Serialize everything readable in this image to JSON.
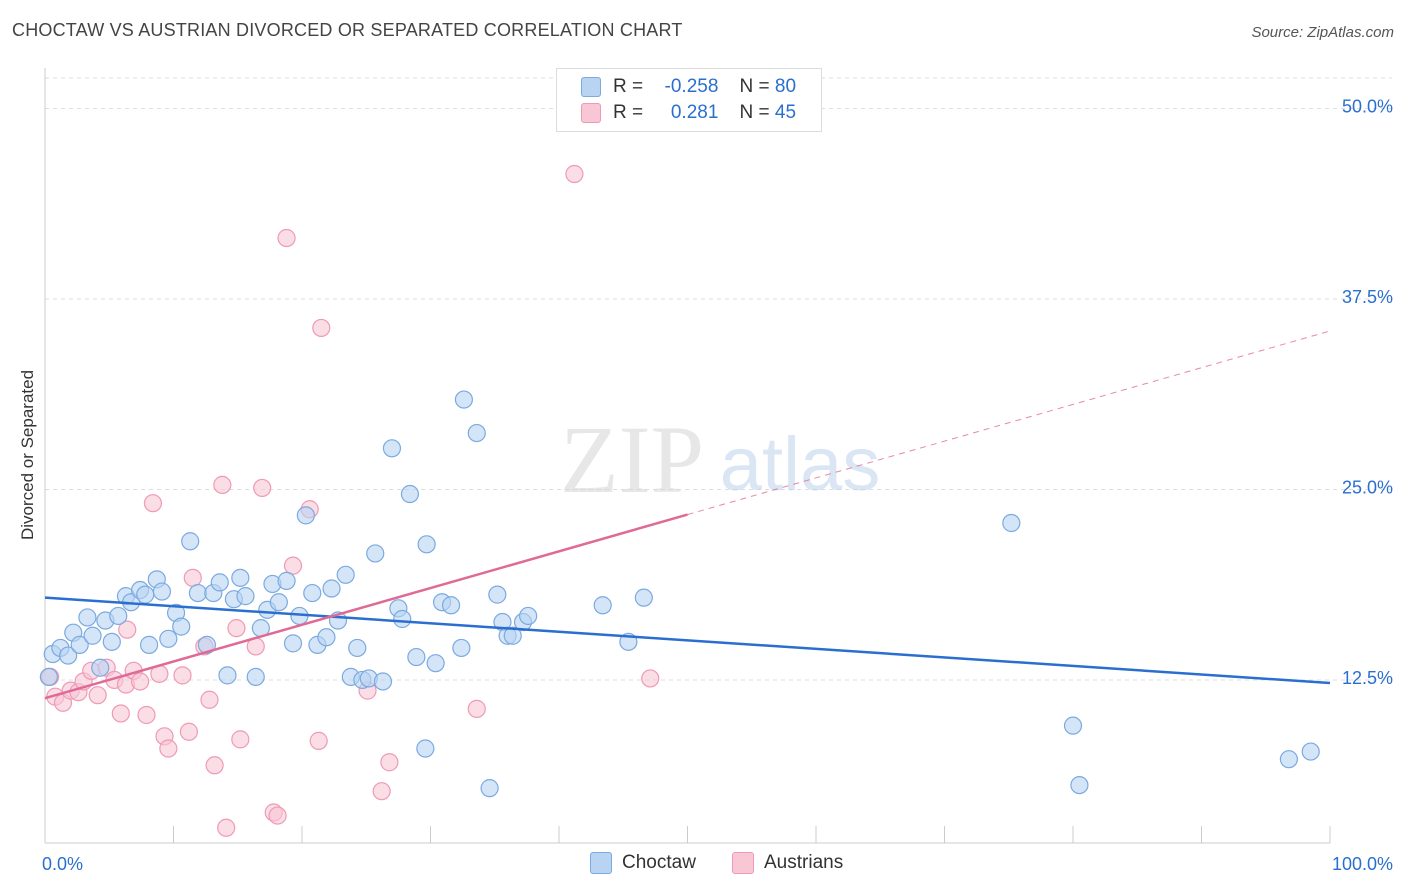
{
  "title": "CHOCTAW VS AUSTRIAN DIVORCED OR SEPARATED CORRELATION CHART",
  "source": "Source: ZipAtlas.com",
  "watermark": {
    "zip": "ZIP",
    "atlas": "atlas"
  },
  "colors": {
    "choctaw_fill": "#b9d3f3",
    "choctaw_stroke": "#7aaae0",
    "choctaw_line": "#2a6fcf",
    "austrians_fill": "#f9c6d6",
    "austrians_stroke": "#ee9ab6",
    "austrians_line": "#e06a96",
    "tick_label": "#2a6fcf"
  },
  "legend_top": {
    "rows": [
      {
        "r_label": "R =",
        "r_value": "-0.258",
        "n_label": "N =",
        "n_value": "80"
      },
      {
        "r_label": "R =",
        "r_value": "0.281",
        "n_label": "N =",
        "n_value": "45"
      }
    ]
  },
  "chart_data": {
    "type": "scatter",
    "title": "CHOCTAW VS AUSTRIAN DIVORCED OR SEPARATED CORRELATION CHART",
    "xlabel": "",
    "ylabel": "Divorced or Separated",
    "xlim": [
      0,
      100
    ],
    "ylim": [
      1.8,
      52
    ],
    "x_tick_labels": [
      "0.0%",
      "100.0%"
    ],
    "y_ticks": [
      12.5,
      25.0,
      37.5,
      50.0
    ],
    "y_tick_labels": [
      "12.5%",
      "25.0%",
      "37.5%",
      "50.0%"
    ],
    "grid": true,
    "legend_position": "bottom",
    "series": [
      {
        "name": "Choctaw",
        "r": -0.258,
        "n": 80,
        "trend": {
          "x": [
            0,
            100
          ],
          "y": [
            17.9,
            12.3
          ]
        },
        "points": [
          [
            0.3,
            12.7
          ],
          [
            0.6,
            14.2
          ],
          [
            1.2,
            14.6
          ],
          [
            1.8,
            14.1
          ],
          [
            2.2,
            15.6
          ],
          [
            2.7,
            14.8
          ],
          [
            3.3,
            16.6
          ],
          [
            3.7,
            15.4
          ],
          [
            4.3,
            13.3
          ],
          [
            4.7,
            16.4
          ],
          [
            5.2,
            15.0
          ],
          [
            5.7,
            16.7
          ],
          [
            6.3,
            18.0
          ],
          [
            6.7,
            17.6
          ],
          [
            7.4,
            18.4
          ],
          [
            7.8,
            18.1
          ],
          [
            8.1,
            14.8
          ],
          [
            8.7,
            19.1
          ],
          [
            9.1,
            18.3
          ],
          [
            9.6,
            15.2
          ],
          [
            10.2,
            16.9
          ],
          [
            10.6,
            16.0
          ],
          [
            11.3,
            21.6
          ],
          [
            11.9,
            18.2
          ],
          [
            12.6,
            14.8
          ],
          [
            13.1,
            18.2
          ],
          [
            13.6,
            18.9
          ],
          [
            14.2,
            12.8
          ],
          [
            14.7,
            17.8
          ],
          [
            15.2,
            19.2
          ],
          [
            15.6,
            18.0
          ],
          [
            16.4,
            12.7
          ],
          [
            16.8,
            15.9
          ],
          [
            17.3,
            17.1
          ],
          [
            17.7,
            18.8
          ],
          [
            18.2,
            17.6
          ],
          [
            18.8,
            19.0
          ],
          [
            19.3,
            14.9
          ],
          [
            19.8,
            16.7
          ],
          [
            20.3,
            23.3
          ],
          [
            20.8,
            18.2
          ],
          [
            21.2,
            14.8
          ],
          [
            21.9,
            15.3
          ],
          [
            22.3,
            18.5
          ],
          [
            22.8,
            16.4
          ],
          [
            23.4,
            19.4
          ],
          [
            23.8,
            12.7
          ],
          [
            24.3,
            14.6
          ],
          [
            24.7,
            12.5
          ],
          [
            25.2,
            12.6
          ],
          [
            25.7,
            20.8
          ],
          [
            26.3,
            12.4
          ],
          [
            27.0,
            27.7
          ],
          [
            27.5,
            17.2
          ],
          [
            27.8,
            16.5
          ],
          [
            28.4,
            24.7
          ],
          [
            28.9,
            14.0
          ],
          [
            29.6,
            8.0
          ],
          [
            29.7,
            21.4
          ],
          [
            30.4,
            13.6
          ],
          [
            30.9,
            17.6
          ],
          [
            31.6,
            17.4
          ],
          [
            32.4,
            14.6
          ],
          [
            32.6,
            30.9
          ],
          [
            33.6,
            28.7
          ],
          [
            34.6,
            5.4
          ],
          [
            35.2,
            18.1
          ],
          [
            35.6,
            16.3
          ],
          [
            36.0,
            15.4
          ],
          [
            36.4,
            15.4
          ],
          [
            37.2,
            16.3
          ],
          [
            37.6,
            16.7
          ],
          [
            43.4,
            17.4
          ],
          [
            45.4,
            15.0
          ],
          [
            46.6,
            17.9
          ],
          [
            75.2,
            22.8
          ],
          [
            80.0,
            9.5
          ],
          [
            80.5,
            5.6
          ],
          [
            96.8,
            7.3
          ],
          [
            98.5,
            7.8
          ]
        ]
      },
      {
        "name": "Austrians",
        "r": 0.281,
        "n": 45,
        "trend": {
          "x": [
            0,
            100
          ],
          "y": [
            11.3,
            35.4
          ]
        },
        "trend_solid_to_x": 50,
        "points": [
          [
            0.4,
            12.7
          ],
          [
            0.8,
            11.4
          ],
          [
            1.4,
            11.0
          ],
          [
            2.0,
            11.8
          ],
          [
            2.6,
            11.7
          ],
          [
            3.0,
            12.4
          ],
          [
            3.6,
            13.1
          ],
          [
            4.1,
            11.5
          ],
          [
            4.8,
            13.3
          ],
          [
            5.4,
            12.5
          ],
          [
            5.9,
            10.3
          ],
          [
            6.3,
            12.2
          ],
          [
            6.4,
            15.8
          ],
          [
            6.9,
            13.1
          ],
          [
            7.4,
            12.4
          ],
          [
            7.9,
            10.2
          ],
          [
            8.4,
            24.1
          ],
          [
            8.9,
            12.9
          ],
          [
            9.3,
            8.8
          ],
          [
            9.6,
            8.0
          ],
          [
            10.7,
            12.8
          ],
          [
            11.2,
            9.1
          ],
          [
            11.5,
            19.2
          ],
          [
            12.4,
            14.7
          ],
          [
            12.8,
            11.2
          ],
          [
            13.2,
            6.9
          ],
          [
            13.8,
            25.3
          ],
          [
            14.1,
            2.8
          ],
          [
            14.9,
            15.9
          ],
          [
            15.2,
            8.6
          ],
          [
            16.4,
            14.7
          ],
          [
            16.9,
            25.1
          ],
          [
            17.8,
            3.8
          ],
          [
            18.1,
            3.6
          ],
          [
            18.8,
            41.5
          ],
          [
            19.3,
            20.0
          ],
          [
            20.6,
            23.7
          ],
          [
            21.3,
            8.5
          ],
          [
            21.5,
            35.6
          ],
          [
            25.1,
            11.8
          ],
          [
            26.2,
            5.2
          ],
          [
            26.8,
            7.1
          ],
          [
            33.6,
            10.6
          ],
          [
            41.2,
            45.7
          ],
          [
            47.1,
            12.6
          ]
        ]
      }
    ]
  }
}
